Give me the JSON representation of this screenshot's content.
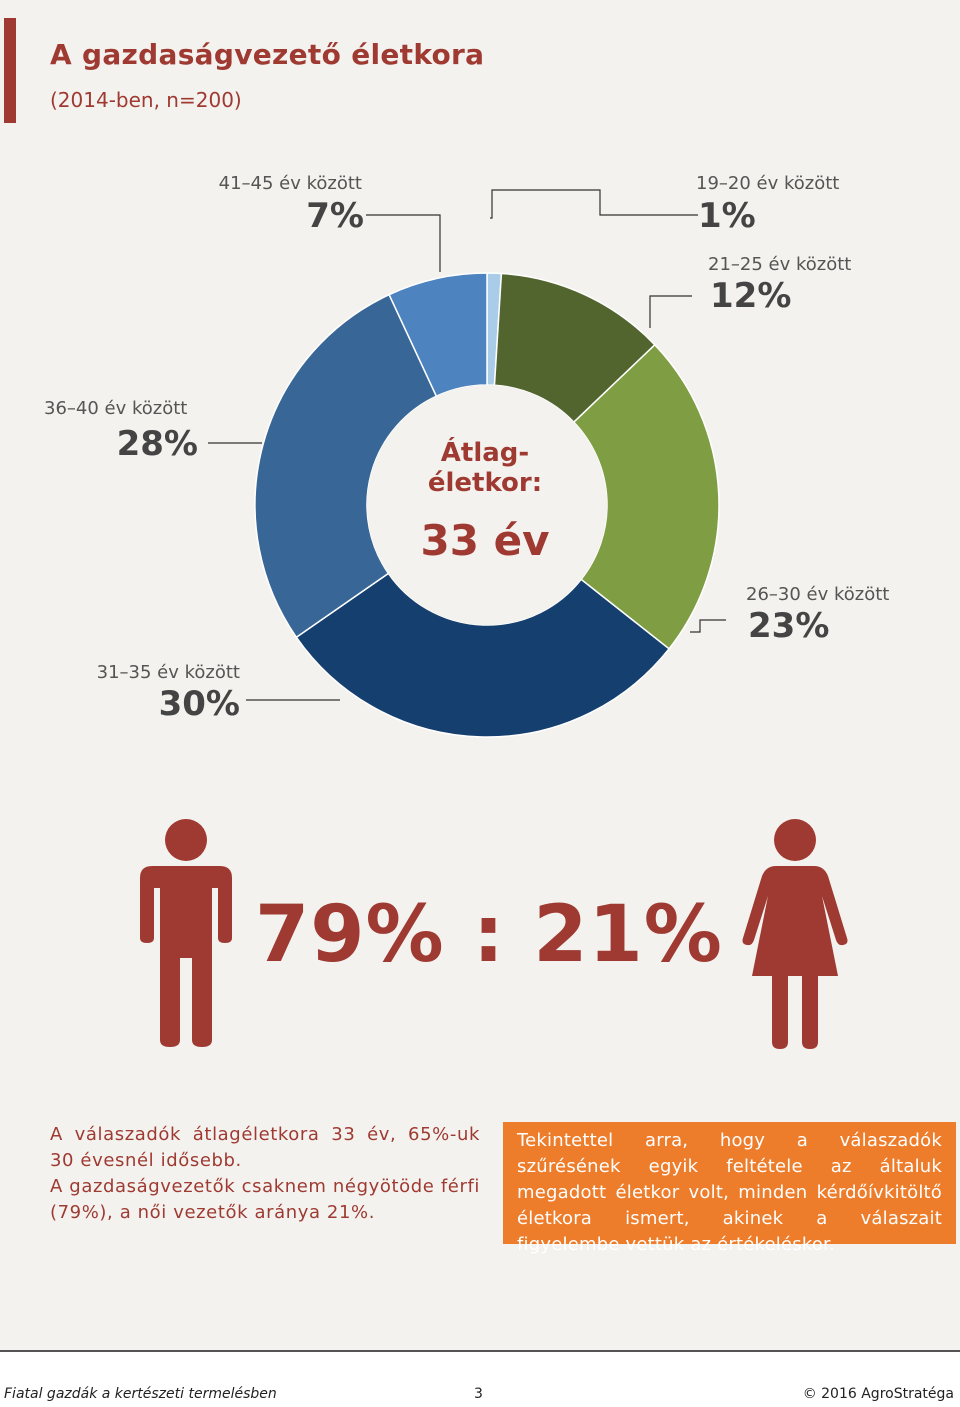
{
  "header": {
    "title": "A gazdaságvezető életkora",
    "subtitle": "(2014-ben, n=200)"
  },
  "chart_data": {
    "type": "pie",
    "title": "A gazdaságvezető életkora",
    "subtitle": "(2014-ben, n=200)",
    "categories": [
      "19–20 év között",
      "21–25 év között",
      "26–30 év között",
      "31–35 év között",
      "36–40 év között",
      "41–45 év között"
    ],
    "values": [
      1,
      12,
      23,
      30,
      28,
      7
    ],
    "labels": [
      "1%",
      "12%",
      "23%",
      "30%",
      "28%",
      "7%"
    ],
    "colors": [
      "#a9cde8",
      "#53652e",
      "#7f9d43",
      "#153f6e",
      "#386797",
      "#4d84c0"
    ],
    "center_label": "Átlag-\néletkor:",
    "center_value": "33 év"
  },
  "gender": {
    "ratio": "79% : 21%",
    "male_color": "#9e3a32",
    "female_color": "#9e3a32",
    "male_icon": "male-figure-icon",
    "female_icon": "female-figure-icon"
  },
  "description": {
    "p1": "A válaszadók átlagéletkora 33 év, 65%-uk 30 évesnél idősebb.",
    "p2": "A gazdaságvezetők csaknem négyötöde férfi (79%), a női vezetők aránya 21%."
  },
  "note": "Tekintettel arra, hogy a válaszadók szűrésének egyik feltétele az általuk megadott életkor volt, minden kérdőívkitöltő életkora ismert, akinek a válaszait figyelembe vettük az értékeléskor.",
  "footer": {
    "left": "Fiatal gazdák a kertészeti termelésben",
    "page": "3",
    "right": "© 2016 AgroStratéga"
  },
  "colors": {
    "accent": "#9e3a32",
    "note_bg": "#ee7d2b"
  }
}
